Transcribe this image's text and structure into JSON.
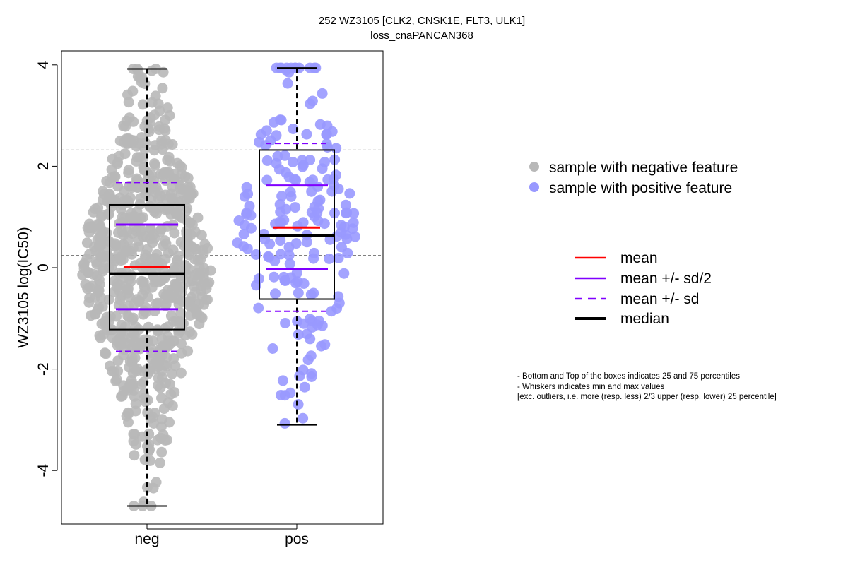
{
  "chart_data": {
    "type": "beeswarm-boxplot",
    "title": "252 WZ3105 [CLK2, CNSK1E, FLT3, ULK1]",
    "subtitle": "loss_cnaPANCAN368",
    "ylabel": "WZ3105 log(IC50)",
    "ylim": [
      -5,
      4.3
    ],
    "yticks": [
      4,
      2,
      0,
      -2,
      -4
    ],
    "ytick_labels": [
      "4",
      "2",
      "0",
      "-2",
      "-4"
    ],
    "categories": [
      "neg",
      "pos"
    ],
    "reference_lines": [
      2.32,
      0.24
    ],
    "groups": [
      {
        "name": "neg",
        "color": "#b8b8b8",
        "point_count": 700,
        "whisker_min": -4.7,
        "q1": -1.22,
        "median": -0.12,
        "q3": 1.24,
        "whisker_max": 3.92,
        "mean": 0.02,
        "mean_minus_half_sd": -0.82,
        "mean_plus_half_sd": 0.85,
        "mean_minus_sd": -1.65,
        "mean_plus_sd": 1.68,
        "outliers": [
          -4.62,
          -3.85,
          -3.7,
          -3.62,
          -3.4
        ]
      },
      {
        "name": "pos",
        "color": "#9999ff",
        "point_count": 185,
        "whisker_min": -3.1,
        "q1": -0.62,
        "median": 0.64,
        "q3": 2.32,
        "whisker_max": 3.94,
        "mean": 0.79,
        "mean_minus_half_sd": -0.03,
        "mean_plus_half_sd": 1.62,
        "mean_minus_sd": -0.86,
        "mean_plus_sd": 2.45,
        "outliers": [
          -2.97,
          -3.07
        ]
      }
    ],
    "legend_points": [
      {
        "label": "sample with negative feature",
        "color": "#b8b8b8"
      },
      {
        "label": "sample with positive feature",
        "color": "#9999ff"
      }
    ],
    "legend_lines": [
      {
        "label": "mean",
        "color": "#ff0000",
        "style": "solid"
      },
      {
        "label": "mean +/- sd/2",
        "color": "#8000ff",
        "style": "solid"
      },
      {
        "label": "mean +/- sd",
        "color": "#8000ff",
        "style": "dashed"
      },
      {
        "label": "median",
        "color": "#000000",
        "style": "solid-thick"
      }
    ],
    "notes": [
      "- Bottom and Top of the boxes indicates 25 and 75 percentiles",
      "- Whiskers indicates min and max values",
      "[exc. outliers, i.e. more (resp. less) 2/3 upper (resp. lower) 25 percentile]"
    ]
  }
}
